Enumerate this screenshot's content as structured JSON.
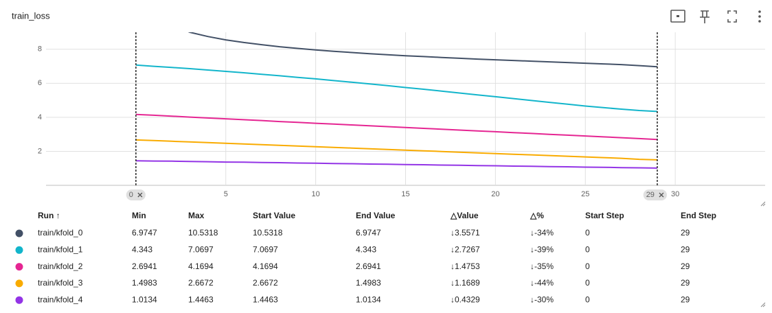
{
  "chart_data": {
    "type": "line",
    "title": "train_loss",
    "x": [
      0,
      1,
      2,
      3,
      4,
      5,
      6,
      7,
      8,
      9,
      10,
      11,
      12,
      13,
      14,
      15,
      16,
      17,
      18,
      19,
      20,
      21,
      22,
      23,
      24,
      25,
      26,
      27,
      28,
      29
    ],
    "series": [
      {
        "name": "train/kfold_0",
        "color": "#425066",
        "values": [
          10.5318,
          9.9,
          9.4,
          9.0,
          8.75,
          8.55,
          8.4,
          8.27,
          8.15,
          8.05,
          7.96,
          7.88,
          7.81,
          7.74,
          7.68,
          7.62,
          7.57,
          7.52,
          7.47,
          7.42,
          7.38,
          7.34,
          7.3,
          7.26,
          7.22,
          7.18,
          7.14,
          7.1,
          7.04,
          6.9747
        ]
      },
      {
        "name": "train/kfold_1",
        "color": "#12b5cb",
        "values": [
          7.0697,
          7.0,
          6.93,
          6.86,
          6.78,
          6.7,
          6.62,
          6.53,
          6.44,
          6.35,
          6.26,
          6.16,
          6.06,
          5.96,
          5.86,
          5.75,
          5.65,
          5.54,
          5.43,
          5.32,
          5.21,
          5.1,
          4.99,
          4.88,
          4.77,
          4.66,
          4.57,
          4.48,
          4.4,
          4.343
        ]
      },
      {
        "name": "train/kfold_2",
        "color": "#e52592",
        "values": [
          4.1694,
          4.12,
          4.07,
          4.01,
          3.96,
          3.91,
          3.86,
          3.81,
          3.75,
          3.7,
          3.65,
          3.6,
          3.55,
          3.5,
          3.45,
          3.4,
          3.35,
          3.3,
          3.25,
          3.2,
          3.15,
          3.1,
          3.05,
          3.0,
          2.95,
          2.9,
          2.85,
          2.8,
          2.75,
          2.6941
        ]
      },
      {
        "name": "train/kfold_3",
        "color": "#f9ab00",
        "values": [
          2.6672,
          2.63,
          2.59,
          2.55,
          2.51,
          2.47,
          2.43,
          2.39,
          2.35,
          2.31,
          2.27,
          2.23,
          2.19,
          2.15,
          2.11,
          2.07,
          2.03,
          1.99,
          1.95,
          1.91,
          1.87,
          1.83,
          1.79,
          1.75,
          1.71,
          1.67,
          1.63,
          1.59,
          1.53,
          1.4983
        ]
      },
      {
        "name": "train/kfold_4",
        "color": "#9334e6",
        "values": [
          1.4463,
          1.43,
          1.42,
          1.4,
          1.39,
          1.37,
          1.36,
          1.34,
          1.33,
          1.31,
          1.3,
          1.28,
          1.27,
          1.25,
          1.24,
          1.22,
          1.21,
          1.19,
          1.18,
          1.16,
          1.15,
          1.13,
          1.12,
          1.1,
          1.09,
          1.07,
          1.06,
          1.04,
          1.03,
          1.0134
        ]
      }
    ],
    "xlim": [
      -5,
      35
    ],
    "xticks": [
      5,
      10,
      15,
      20,
      25,
      30
    ],
    "ylim": [
      0,
      9
    ],
    "yticks": [
      2,
      4,
      6,
      8
    ],
    "grid": true,
    "range_start": 0,
    "range_end": 29
  },
  "table": {
    "headers": [
      "Run ↑",
      "Min",
      "Max",
      "Start Value",
      "End Value",
      "△Value",
      "△%",
      "Start Step",
      "End Step"
    ],
    "rows": [
      [
        "train/kfold_0",
        "6.9747",
        "10.5318",
        "10.5318",
        "6.9747",
        "↓3.5571",
        "↓-34%",
        "0",
        "29"
      ],
      [
        "train/kfold_1",
        "4.343",
        "7.0697",
        "7.0697",
        "4.343",
        "↓2.7267",
        "↓-39%",
        "0",
        "29"
      ],
      [
        "train/kfold_2",
        "2.6941",
        "4.1694",
        "4.1694",
        "2.6941",
        "↓1.4753",
        "↓-35%",
        "0",
        "29"
      ],
      [
        "train/kfold_3",
        "1.4983",
        "2.6672",
        "2.6672",
        "1.4983",
        "↓1.1689",
        "↓-44%",
        "0",
        "29"
      ],
      [
        "train/kfold_4",
        "1.0134",
        "1.4463",
        "1.4463",
        "1.0134",
        "↓0.4329",
        "↓-30%",
        "0",
        "29"
      ]
    ]
  }
}
